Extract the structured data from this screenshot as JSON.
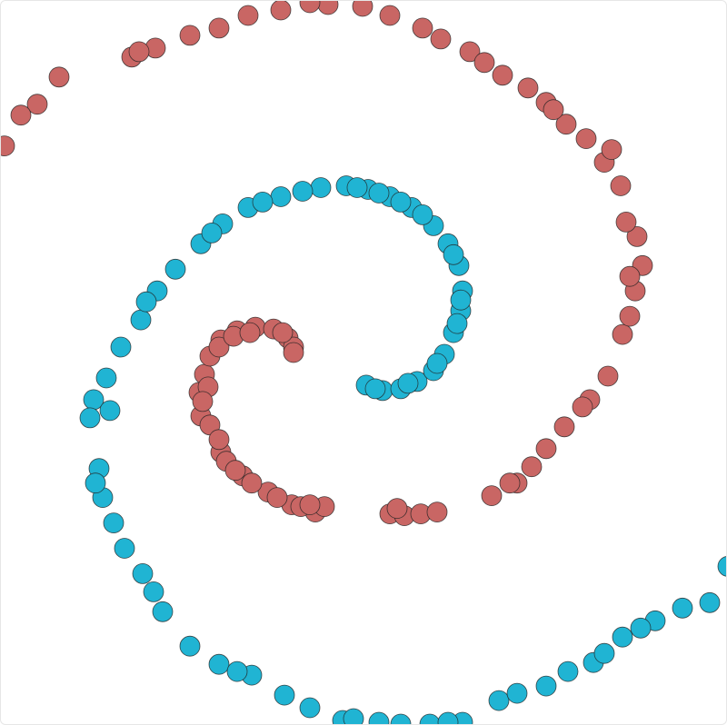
{
  "chart_data": {
    "type": "scatter",
    "title": "",
    "xlabel": "",
    "ylabel": "",
    "grid": false,
    "legend": "none",
    "xlim": [
      -1,
      1
    ],
    "ylim": [
      -1,
      1
    ],
    "series": [
      {
        "color": "#c96664",
        "points": [
          [
            -0.45,
            -0.145
          ],
          [
            -0.455,
            -0.08
          ],
          [
            -0.44,
            -0.03
          ],
          [
            -0.425,
            0.02
          ],
          [
            -0.395,
            0.065
          ],
          [
            -0.35,
            0.09
          ],
          [
            -0.3,
            0.1
          ],
          [
            -0.25,
            0.095
          ],
          [
            -0.21,
            0.07
          ],
          [
            -0.195,
            0.045
          ],
          [
            -0.195,
            0.03
          ],
          [
            -0.4,
            0.045
          ],
          [
            -0.36,
            0.075
          ],
          [
            -0.315,
            0.085
          ],
          [
            -0.225,
            0.085
          ],
          [
            -0.43,
            -0.065
          ],
          [
            -0.445,
            -0.105
          ],
          [
            -0.425,
            -0.17
          ],
          [
            -0.395,
            -0.245
          ],
          [
            -0.335,
            -0.31
          ],
          [
            -0.265,
            -0.355
          ],
          [
            -0.2,
            -0.39
          ],
          [
            -0.135,
            -0.41
          ],
          [
            -0.38,
            -0.27
          ],
          [
            -0.31,
            -0.33
          ],
          [
            -0.24,
            -0.37
          ],
          [
            -0.175,
            -0.395
          ],
          [
            -0.11,
            -0.395
          ],
          [
            -0.4,
            -0.21
          ],
          [
            -0.355,
            -0.295
          ],
          [
            -0.15,
            -0.39
          ],
          [
            0.07,
            -0.415
          ],
          [
            0.11,
            -0.42
          ],
          [
            0.155,
            -0.415
          ],
          [
            0.2,
            -0.41
          ],
          [
            0.09,
            -0.4
          ],
          [
            0.35,
            -0.365
          ],
          [
            0.42,
            -0.33
          ],
          [
            0.46,
            -0.285
          ],
          [
            0.5,
            -0.235
          ],
          [
            0.55,
            -0.175
          ],
          [
            0.62,
            -0.1
          ],
          [
            0.67,
            -0.035
          ],
          [
            0.71,
            0.08
          ],
          [
            0.73,
            0.13
          ],
          [
            0.745,
            0.2
          ],
          [
            0.765,
            0.27
          ],
          [
            0.75,
            0.35
          ],
          [
            0.72,
            0.39
          ],
          [
            0.705,
            0.49
          ],
          [
            0.66,
            0.555
          ],
          [
            0.61,
            0.62
          ],
          [
            0.555,
            0.66
          ],
          [
            0.5,
            0.72
          ],
          [
            0.45,
            0.76
          ],
          [
            0.38,
            0.795
          ],
          [
            0.29,
            0.86
          ],
          [
            0.21,
            0.895
          ],
          [
            0.16,
            0.925
          ],
          [
            0.07,
            0.96
          ],
          [
            -0.005,
            0.985
          ],
          [
            -0.1,
            0.99
          ],
          [
            -0.15,
            0.995
          ],
          [
            -0.23,
            0.975
          ],
          [
            -0.32,
            0.96
          ],
          [
            -0.4,
            0.925
          ],
          [
            -0.48,
            0.905
          ],
          [
            -0.575,
            0.87
          ],
          [
            -0.64,
            0.845
          ],
          [
            -0.84,
            0.79
          ],
          [
            -0.9,
            0.715
          ],
          [
            -0.945,
            0.685
          ],
          [
            -0.99,
            0.6
          ],
          [
            0.4,
            -0.33
          ],
          [
            0.6,
            -0.12
          ],
          [
            0.73,
            0.24
          ],
          [
            0.68,
            0.59
          ],
          [
            0.52,
            0.7
          ],
          [
            0.33,
            0.83
          ],
          [
            -0.62,
            0.86
          ]
        ]
      },
      {
        "color": "#20b4d3",
        "points": [
          [
            0.005,
            -0.06
          ],
          [
            0.05,
            -0.075
          ],
          [
            0.1,
            -0.07
          ],
          [
            0.145,
            -0.05
          ],
          [
            0.19,
            -0.02
          ],
          [
            0.22,
            0.025
          ],
          [
            0.245,
            0.085
          ],
          [
            0.265,
            0.145
          ],
          [
            0.27,
            0.2
          ],
          [
            0.26,
            0.27
          ],
          [
            0.23,
            0.33
          ],
          [
            0.19,
            0.38
          ],
          [
            0.13,
            0.43
          ],
          [
            0.07,
            0.46
          ],
          [
            0.01,
            0.48
          ],
          [
            -0.05,
            0.49
          ],
          [
            -0.12,
            0.485
          ],
          [
            -0.17,
            0.475
          ],
          [
            -0.23,
            0.46
          ],
          [
            -0.32,
            0.43
          ],
          [
            -0.39,
            0.385
          ],
          [
            -0.45,
            0.33
          ],
          [
            -0.52,
            0.26
          ],
          [
            -0.57,
            0.2
          ],
          [
            -0.615,
            0.12
          ],
          [
            -0.67,
            0.045
          ],
          [
            -0.71,
            -0.04
          ],
          [
            -0.745,
            -0.1
          ],
          [
            -0.755,
            -0.15
          ],
          [
            -0.73,
            -0.29
          ],
          [
            -0.72,
            -0.37
          ],
          [
            -0.69,
            -0.44
          ],
          [
            -0.66,
            -0.51
          ],
          [
            -0.61,
            -0.58
          ],
          [
            -0.555,
            -0.685
          ],
          [
            -0.48,
            -0.78
          ],
          [
            -0.4,
            -0.83
          ],
          [
            -0.31,
            -0.86
          ],
          [
            -0.22,
            -0.915
          ],
          [
            -0.15,
            -0.95
          ],
          [
            -0.06,
            -0.985
          ],
          [
            0.04,
            -0.99
          ],
          [
            0.1,
            -0.995
          ],
          [
            0.18,
            -0.995
          ],
          [
            0.27,
            -0.99
          ],
          [
            0.37,
            -0.93
          ],
          [
            0.42,
            -0.91
          ],
          [
            0.5,
            -0.89
          ],
          [
            0.56,
            -0.85
          ],
          [
            0.63,
            -0.825
          ],
          [
            0.71,
            -0.755
          ],
          [
            0.8,
            -0.71
          ],
          [
            0.875,
            -0.675
          ],
          [
            0.95,
            -0.66
          ],
          [
            1.0,
            -0.56
          ],
          [
            0.03,
            -0.07
          ],
          [
            0.12,
            -0.055
          ],
          [
            0.2,
            0.0
          ],
          [
            0.255,
            0.11
          ],
          [
            0.265,
            0.175
          ],
          [
            0.245,
            0.3
          ],
          [
            0.16,
            0.41
          ],
          [
            0.1,
            0.445
          ],
          [
            0.04,
            0.47
          ],
          [
            -0.02,
            0.485
          ],
          [
            -0.28,
            0.445
          ],
          [
            -0.42,
            0.36
          ],
          [
            -0.6,
            0.17
          ],
          [
            -0.7,
            -0.13
          ],
          [
            -0.74,
            -0.33
          ],
          [
            -0.58,
            -0.63
          ],
          [
            -0.35,
            -0.85
          ],
          [
            -0.03,
            -0.98
          ],
          [
            0.23,
            -0.99
          ],
          [
            0.66,
            -0.8
          ],
          [
            0.76,
            -0.73
          ]
        ]
      }
    ]
  }
}
